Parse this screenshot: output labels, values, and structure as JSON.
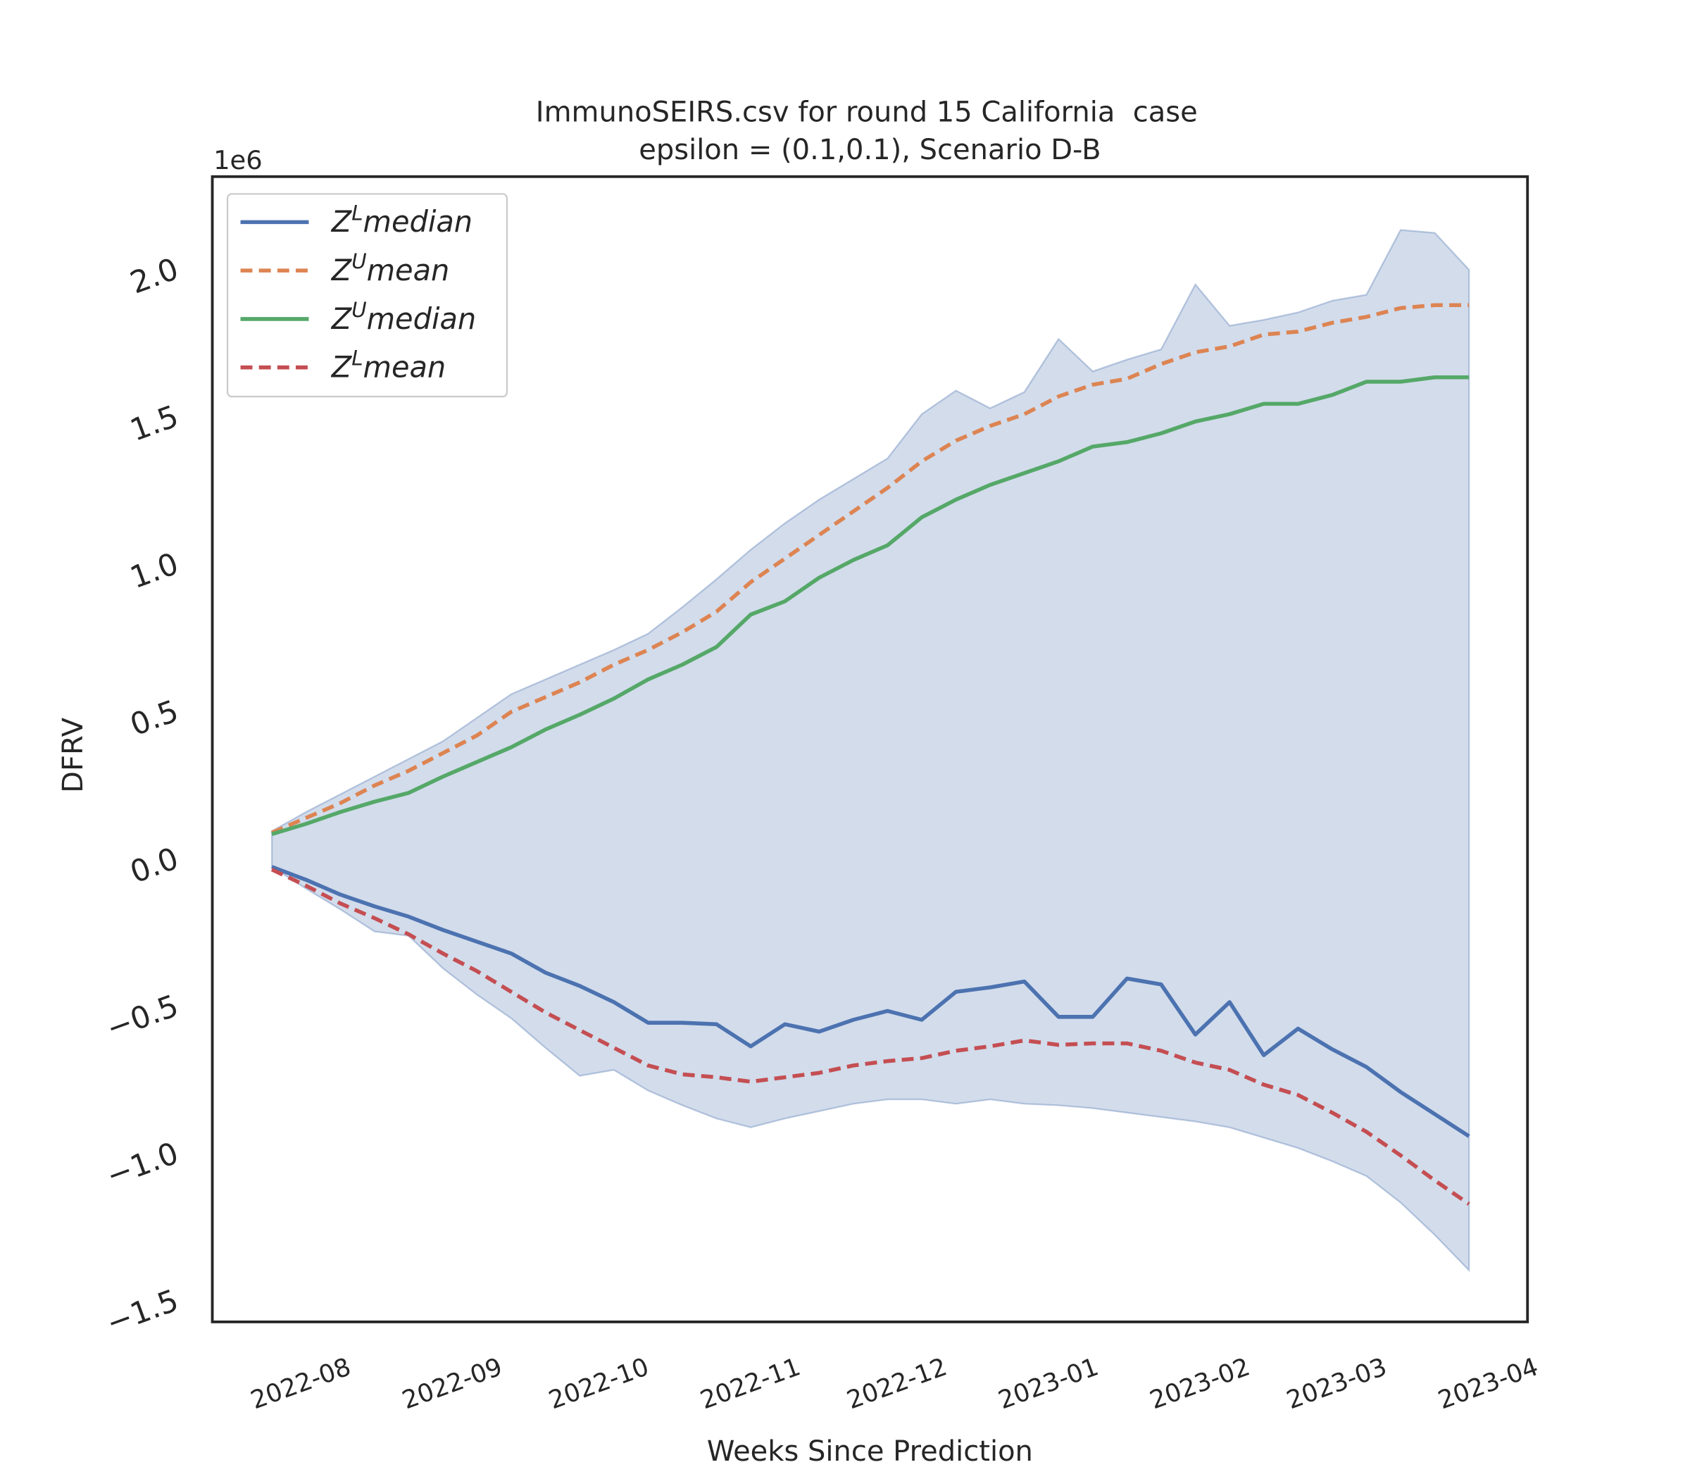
{
  "chart_data": {
    "type": "line",
    "title": [
      "ImmunoSEIRS.csv for round 15 California  case",
      "epsilon = (0.1,0.1), Scenario D-B"
    ],
    "xlabel": "Weeks Since Prediction",
    "ylabel": "DFRV",
    "y_multiplier": "1e6",
    "x": [
      0,
      1,
      2,
      3,
      4,
      5,
      6,
      7,
      8,
      9,
      10,
      11,
      12,
      13,
      14,
      15,
      16,
      17,
      18,
      19,
      20,
      21,
      22,
      23,
      24,
      25,
      26,
      27,
      28,
      29,
      30,
      31,
      32,
      33,
      34,
      35
    ],
    "xlim": [
      -1.74,
      36.71
    ],
    "xticks": [
      {
        "value": 0.857,
        "label": "2022-08"
      },
      {
        "value": 5.286,
        "label": "2022-09"
      },
      {
        "value": 9.571,
        "label": "2022-10"
      },
      {
        "value": 14,
        "label": "2022-11"
      },
      {
        "value": 18.286,
        "label": "2022-12"
      },
      {
        "value": 22.714,
        "label": "2023-01"
      },
      {
        "value": 27.143,
        "label": "2023-02"
      },
      {
        "value": 31.143,
        "label": "2023-03"
      },
      {
        "value": 35.571,
        "label": "2023-04"
      }
    ],
    "ylim": [
      -1.57,
      2.316
    ],
    "yticks": [
      {
        "value": -1.5,
        "label": "−1.5"
      },
      {
        "value": -1.0,
        "label": "−1.0"
      },
      {
        "value": -0.5,
        "label": "−0.5"
      },
      {
        "value": 0,
        "label": "0.0"
      },
      0.5,
      {
        "value": 1.0,
        "label": "1.0"
      },
      1.5,
      {
        "value": 2.0,
        "label": "2.0"
      }
    ],
    "grid": false,
    "legend": "upper left",
    "band": {
      "color": "#4c72b0",
      "upper": [
        0.095,
        0.16,
        0.22,
        0.28,
        0.34,
        0.4,
        0.48,
        0.56,
        0.61,
        0.66,
        0.71,
        0.765,
        0.855,
        0.95,
        1.05,
        1.14,
        1.22,
        1.29,
        1.36,
        1.51,
        1.59,
        1.53,
        1.585,
        1.765,
        1.655,
        1.695,
        1.73,
        1.95,
        1.81,
        1.83,
        1.855,
        1.895,
        1.915,
        2.135,
        2.125,
        2.0
      ],
      "lower": [
        -0.026,
        -0.1,
        -0.17,
        -0.245,
        -0.26,
        -0.37,
        -0.46,
        -0.54,
        -0.64,
        -0.735,
        -0.715,
        -0.785,
        -0.835,
        -0.88,
        -0.91,
        -0.88,
        -0.855,
        -0.83,
        -0.815,
        -0.815,
        -0.83,
        -0.815,
        -0.83,
        -0.835,
        -0.845,
        -0.86,
        -0.875,
        -0.89,
        -0.91,
        -0.945,
        -0.98,
        -1.025,
        -1.075,
        -1.165,
        -1.275,
        -1.395
      ]
    },
    "series": [
      {
        "name": "Z^Lmedian",
        "color": "#4c72b0",
        "dashed": false,
        "values": [
          -0.026,
          -0.07,
          -0.12,
          -0.16,
          -0.195,
          -0.24,
          -0.28,
          -0.32,
          -0.385,
          -0.43,
          -0.485,
          -0.555,
          -0.555,
          -0.56,
          -0.635,
          -0.56,
          -0.585,
          -0.545,
          -0.515,
          -0.545,
          -0.45,
          -0.435,
          -0.415,
          -0.535,
          -0.535,
          -0.405,
          -0.425,
          -0.595,
          -0.485,
          -0.665,
          -0.575,
          -0.645,
          -0.705,
          -0.79,
          -0.865,
          -0.94
        ]
      },
      {
        "name": "Z^Umean",
        "color": "#dd8452",
        "dashed": true,
        "values": [
          0.09,
          0.14,
          0.19,
          0.25,
          0.3,
          0.36,
          0.42,
          0.5,
          0.55,
          0.6,
          0.66,
          0.71,
          0.77,
          0.84,
          0.94,
          1.02,
          1.1,
          1.18,
          1.26,
          1.35,
          1.42,
          1.47,
          1.51,
          1.57,
          1.61,
          1.63,
          1.68,
          1.72,
          1.74,
          1.78,
          1.79,
          1.82,
          1.84,
          1.87,
          1.88,
          1.88
        ]
      },
      {
        "name": "Z^Umedian",
        "color": "#55a868",
        "dashed": false,
        "values": [
          0.085,
          0.12,
          0.16,
          0.195,
          0.225,
          0.28,
          0.33,
          0.38,
          0.44,
          0.49,
          0.545,
          0.61,
          0.66,
          0.72,
          0.83,
          0.875,
          0.955,
          1.015,
          1.065,
          1.16,
          1.22,
          1.27,
          1.31,
          1.35,
          1.4,
          1.415,
          1.445,
          1.485,
          1.51,
          1.545,
          1.545,
          1.575,
          1.62,
          1.62,
          1.635,
          1.635
        ]
      },
      {
        "name": "Z^Lmean",
        "color": "#c44e52",
        "dashed": true,
        "values": [
          -0.035,
          -0.09,
          -0.15,
          -0.2,
          -0.255,
          -0.32,
          -0.38,
          -0.45,
          -0.52,
          -0.58,
          -0.64,
          -0.7,
          -0.73,
          -0.74,
          -0.755,
          -0.74,
          -0.725,
          -0.7,
          -0.685,
          -0.675,
          -0.65,
          -0.635,
          -0.615,
          -0.63,
          -0.625,
          -0.625,
          -0.65,
          -0.69,
          -0.715,
          -0.765,
          -0.8,
          -0.86,
          -0.925,
          -1.005,
          -1.09,
          -1.17
        ]
      }
    ]
  }
}
